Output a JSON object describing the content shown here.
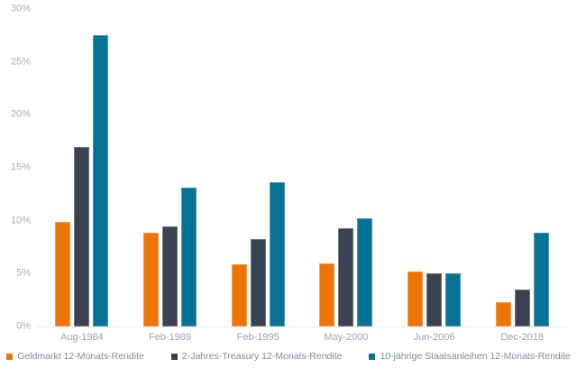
{
  "chart_data": {
    "type": "bar",
    "title": "",
    "xlabel": "",
    "ylabel": "",
    "categories": [
      "Aug-1984",
      "Feb-1989",
      "Feb-1995",
      "May-2000",
      "Jun-2006",
      "Dec-2018"
    ],
    "series": [
      {
        "name": "Geldmarkt 12-Monats-Rendite",
        "color": "#EE7405",
        "values": [
          9.9,
          8.9,
          5.9,
          6.0,
          5.2,
          2.3
        ]
      },
      {
        "name": "2-Jahres-Treasury 12-Monats-Rendite",
        "color": "#3A4150",
        "values": [
          17.0,
          9.5,
          8.3,
          9.3,
          5.0,
          3.5
        ]
      },
      {
        "name": "10-jährige Staatsanleihen 12-Monats-Rendite",
        "color": "#067294",
        "values": [
          27.5,
          13.1,
          13.6,
          10.2,
          5.0,
          8.9
        ]
      }
    ],
    "ylim": [
      0,
      30
    ],
    "ytick_step": 5,
    "yticks": [
      "0%",
      "5%",
      "10%",
      "15%",
      "20%",
      "25%",
      "30%"
    ],
    "grid": false,
    "legend_position": "bottom"
  },
  "colors": {
    "background": "#ffffff",
    "y_tick_label": "#a7adc0",
    "x_tick_label": "#9aa2b5",
    "legend_text": "#7e8ca2",
    "axis_line": "#ebecef"
  }
}
